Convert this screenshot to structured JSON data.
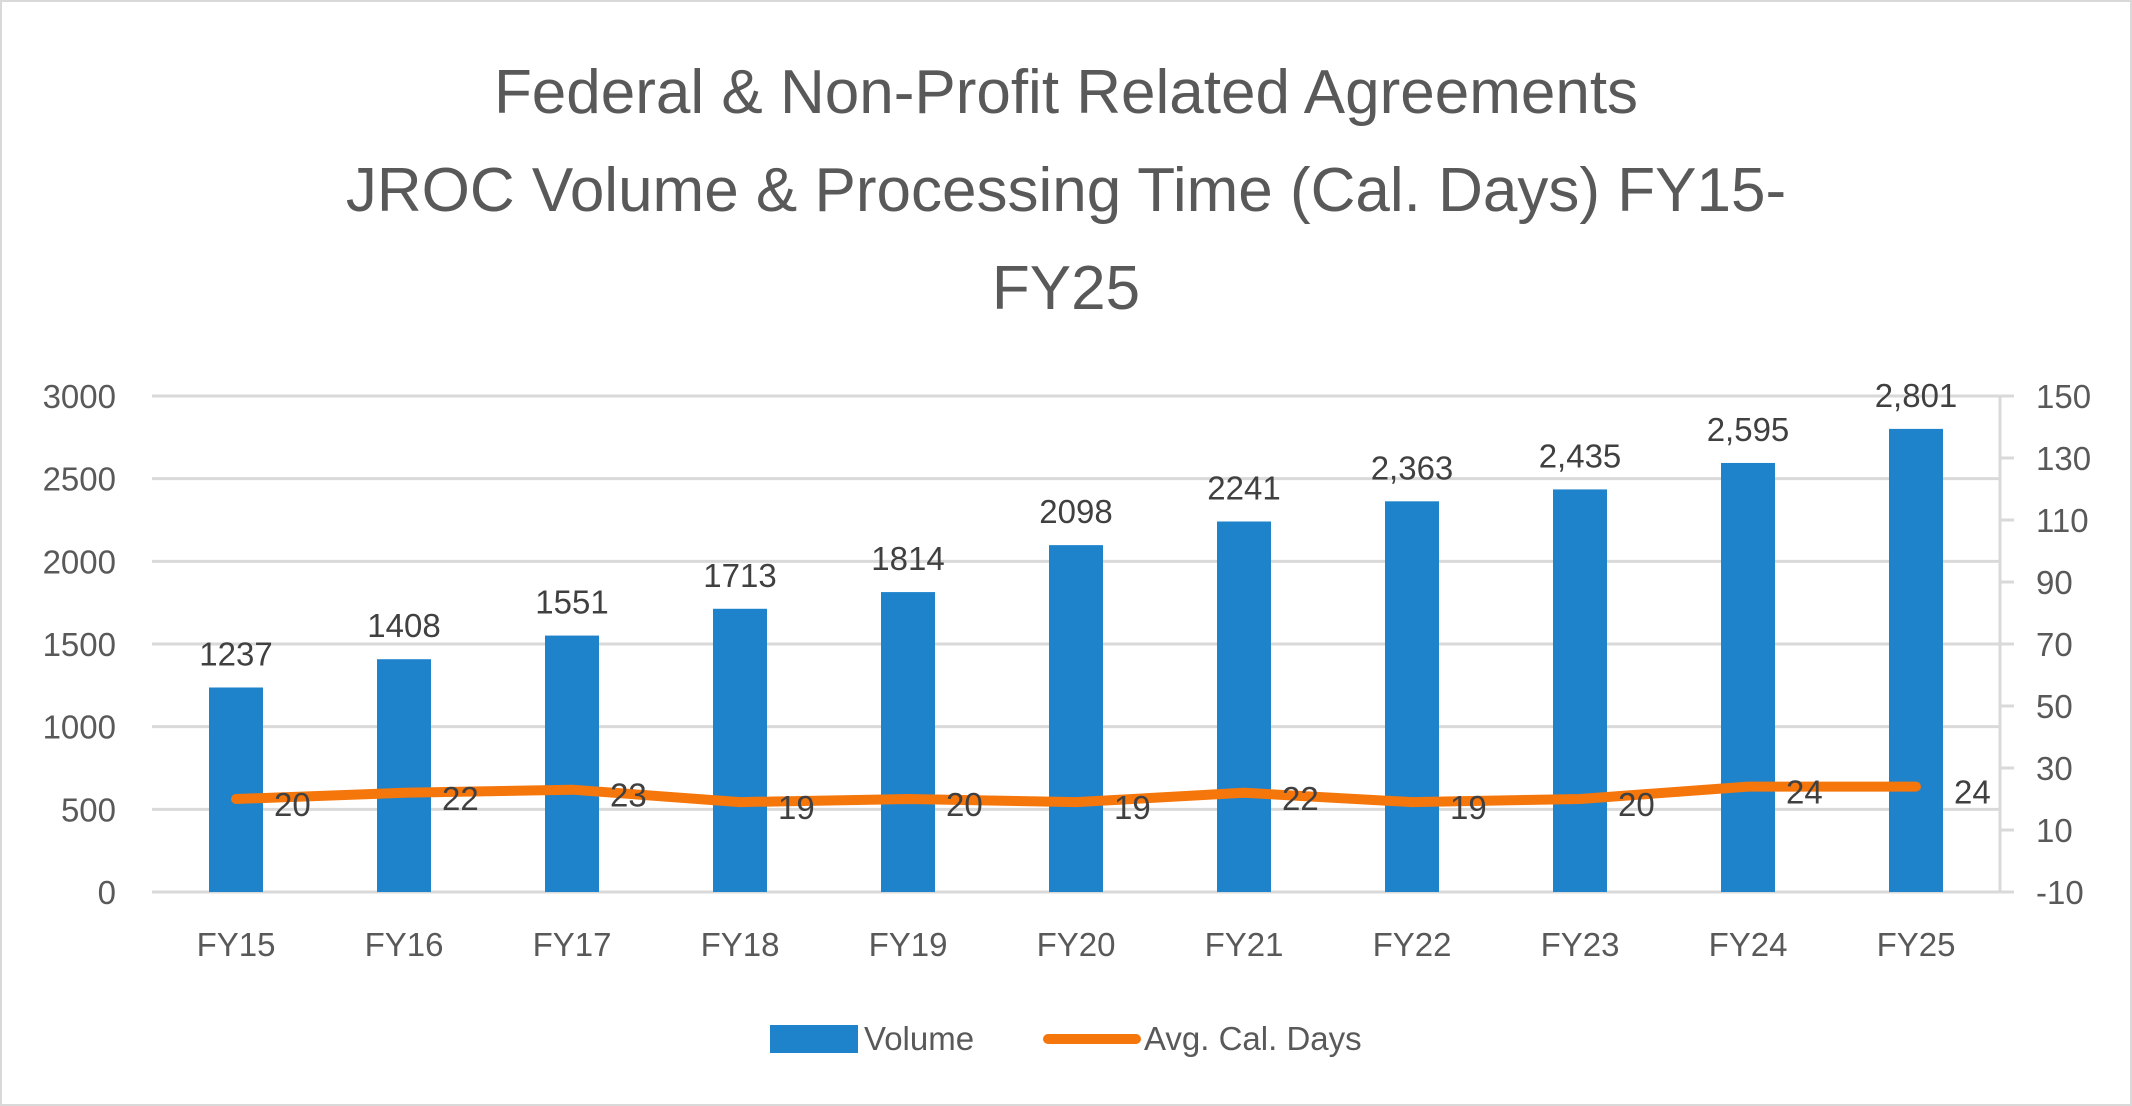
{
  "chart_data": {
    "type": "bar",
    "title_lines": [
      "Federal & Non-Profit Related Agreements",
      "JROC Volume & Processing Time (Cal. Days) FY15-",
      "FY25"
    ],
    "title": "Federal & Non-Profit Related Agreements JROC Volume & Processing Time (Cal. Days) FY15-FY25",
    "categories": [
      "FY15",
      "FY16",
      "FY17",
      "FY18",
      "FY19",
      "FY20",
      "FY21",
      "FY22",
      "FY23",
      "FY24",
      "FY25"
    ],
    "series": [
      {
        "name": "Volume",
        "type": "bar",
        "axis": "left",
        "color": "#1f83cc",
        "values": [
          1237,
          1408,
          1551,
          1713,
          1814,
          2098,
          2241,
          2363,
          2435,
          2595,
          2801
        ],
        "labels": [
          "1237",
          "1408",
          "1551",
          "1713",
          "1814",
          "2098",
          "2241",
          "2,363",
          "2,435",
          "2,595",
          "2,801"
        ]
      },
      {
        "name": "Avg. Cal. Days",
        "type": "line",
        "axis": "right",
        "color": "#f5760b",
        "values": [
          20,
          22,
          23,
          19,
          20,
          19,
          22,
          19,
          20,
          24,
          24
        ],
        "labels": [
          "20",
          "22",
          "23",
          "19",
          "20",
          "19",
          "22",
          "19",
          "20",
          "24",
          "24"
        ]
      }
    ],
    "y_left": {
      "min": 0,
      "max": 3000,
      "step": 500,
      "ticks": [
        "0",
        "500",
        "1000",
        "1500",
        "2000",
        "2500",
        "3000"
      ]
    },
    "y_right": {
      "min": -10,
      "max": 150,
      "step": 20,
      "ticks": [
        "-10",
        "10",
        "30",
        "50",
        "70",
        "90",
        "110",
        "130",
        "150"
      ]
    },
    "xlabel": "",
    "ylabel": "",
    "grid": true,
    "legend_position": "bottom",
    "colors": {
      "gridline": "#d9d9d9",
      "text": "#595959",
      "bar": "#1f83cc",
      "line": "#f5760b"
    }
  }
}
